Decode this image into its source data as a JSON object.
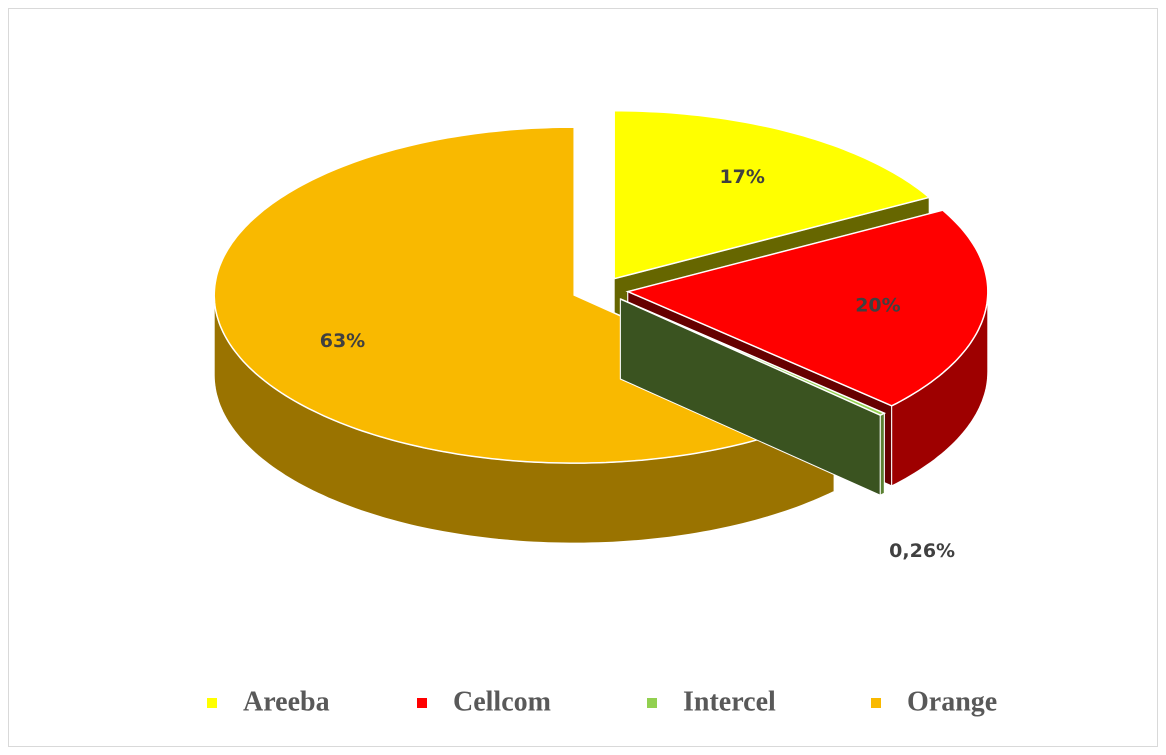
{
  "chart_data": {
    "type": "pie3d",
    "categories": [
      "Areeba",
      "Cellcom",
      "Intercel",
      "Orange"
    ],
    "values": [
      17,
      20,
      0.26,
      63
    ],
    "value_labels": [
      "17%",
      "20%",
      "0,26%",
      "63%"
    ],
    "colors": [
      "#ffff00",
      "#ff0000",
      "#92d050",
      "#f9b900"
    ],
    "legend": "bottom"
  }
}
